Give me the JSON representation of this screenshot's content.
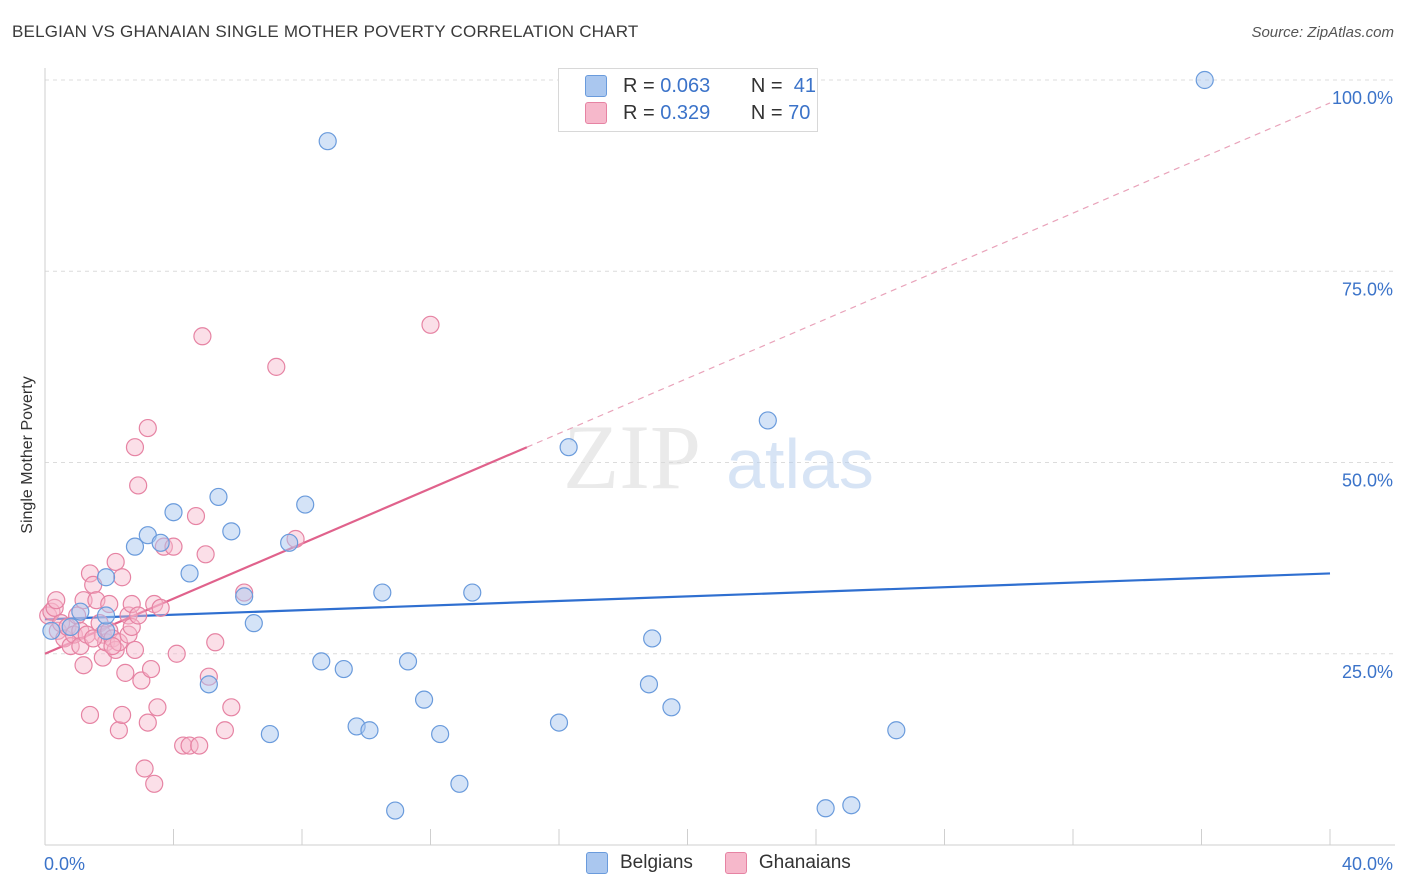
{
  "header": {
    "title": "BELGIAN VS GHANAIAN SINGLE MOTHER POVERTY CORRELATION CHART",
    "source": "Source: ZipAtlas.com"
  },
  "watermark": {
    "zip": "ZIP",
    "atlas": "atlas"
  },
  "legend": {
    "rows": [
      {
        "r_label": "R =",
        "r_value": "0.063",
        "n_label": "N =",
        "n_value": "41",
        "color": "#aac7ef"
      },
      {
        "r_label": "R =",
        "r_value": "0.329",
        "n_label": "N =",
        "n_value": "70",
        "color": "#f6b8cb"
      }
    ]
  },
  "bottom_legend": {
    "belgians": "Belgians",
    "ghanaians": "Ghanaians"
  },
  "colors": {
    "belgian_fill": "#aac7ef",
    "belgian_stroke": "#6a9bdc",
    "belgian_line": "#2f6fd0",
    "ghanaian_fill": "#f6b8cb",
    "ghanaian_stroke": "#e683a3",
    "ghanaian_line": "#e0628c",
    "tick_text": "#3b73c9"
  },
  "chart_data": {
    "type": "scatter",
    "title": "BELGIAN VS GHANAIAN SINGLE MOTHER POVERTY CORRELATION CHART",
    "xlabel": "",
    "ylabel": "Single Mother Poverty",
    "xlim": [
      0,
      40
    ],
    "ylim": [
      0,
      100
    ],
    "x_tick_labels": [
      "0.0%",
      "40.0%"
    ],
    "y_ticks": [
      25,
      50,
      75,
      100
    ],
    "y_tick_labels": [
      "25.0%",
      "50.0%",
      "75.0%",
      "100.0%"
    ],
    "grid": true,
    "series": [
      {
        "name": "Belgians",
        "trend": {
          "x": [
            0,
            40
          ],
          "y": [
            29.5,
            35.5
          ],
          "style": "solid"
        },
        "points": [
          [
            0.2,
            28
          ],
          [
            0.8,
            28.5
          ],
          [
            1.1,
            30.5
          ],
          [
            1.9,
            28
          ],
          [
            1.9,
            30
          ],
          [
            1.9,
            35
          ],
          [
            2.8,
            39
          ],
          [
            3.2,
            40.5
          ],
          [
            3.6,
            39.5
          ],
          [
            4.0,
            43.5
          ],
          [
            4.5,
            35.5
          ],
          [
            5.1,
            21
          ],
          [
            5.4,
            45.5
          ],
          [
            5.8,
            41
          ],
          [
            6.2,
            32.5
          ],
          [
            6.5,
            29
          ],
          [
            7.0,
            14.5
          ],
          [
            7.6,
            39.5
          ],
          [
            8.1,
            44.5
          ],
          [
            8.6,
            24
          ],
          [
            8.8,
            92
          ],
          [
            9.3,
            23
          ],
          [
            9.7,
            15.5
          ],
          [
            10.1,
            15
          ],
          [
            10.5,
            33
          ],
          [
            10.9,
            4.5
          ],
          [
            11.3,
            24
          ],
          [
            11.8,
            19
          ],
          [
            12.3,
            14.5
          ],
          [
            12.9,
            8
          ],
          [
            13.3,
            33
          ],
          [
            16.0,
            16
          ],
          [
            16.3,
            52
          ],
          [
            18.8,
            21
          ],
          [
            18.9,
            27
          ],
          [
            19.5,
            18
          ],
          [
            22.5,
            55.5
          ],
          [
            24.3,
            4.8
          ],
          [
            25.1,
            5.2
          ],
          [
            26.5,
            15
          ],
          [
            36.1,
            100
          ]
        ]
      },
      {
        "name": "Ghanaians",
        "trend": {
          "x": [
            0,
            15
          ],
          "y": [
            25,
            52
          ],
          "dashed_extension_to": [
            40,
            97
          ],
          "style": "solid"
        },
        "points": [
          [
            0.1,
            30
          ],
          [
            0.2,
            30.5
          ],
          [
            0.3,
            31
          ],
          [
            0.35,
            32
          ],
          [
            0.4,
            28
          ],
          [
            0.5,
            29
          ],
          [
            0.6,
            27
          ],
          [
            0.7,
            28.5
          ],
          [
            0.8,
            26
          ],
          [
            0.9,
            27.5
          ],
          [
            1.0,
            30
          ],
          [
            1.1,
            28
          ],
          [
            1.1,
            26
          ],
          [
            1.2,
            32
          ],
          [
            1.2,
            23.5
          ],
          [
            1.3,
            27.5
          ],
          [
            1.4,
            35.5
          ],
          [
            1.4,
            17
          ],
          [
            1.5,
            34
          ],
          [
            1.6,
            32
          ],
          [
            1.7,
            29
          ],
          [
            1.8,
            27.5
          ],
          [
            1.8,
            24.5
          ],
          [
            1.9,
            26.5
          ],
          [
            2.0,
            28
          ],
          [
            2.0,
            31.5
          ],
          [
            2.1,
            27
          ],
          [
            2.2,
            25.5
          ],
          [
            2.2,
            37
          ],
          [
            2.3,
            26.5
          ],
          [
            2.3,
            15
          ],
          [
            2.4,
            35
          ],
          [
            2.4,
            17
          ],
          [
            2.5,
            22.5
          ],
          [
            2.6,
            30
          ],
          [
            2.6,
            27.5
          ],
          [
            2.7,
            28.5
          ],
          [
            2.7,
            31.5
          ],
          [
            2.8,
            25.5
          ],
          [
            2.8,
            52
          ],
          [
            2.9,
            47
          ],
          [
            3.0,
            21.5
          ],
          [
            3.1,
            10
          ],
          [
            3.2,
            54.5
          ],
          [
            3.2,
            16
          ],
          [
            3.3,
            23
          ],
          [
            3.4,
            8
          ],
          [
            3.4,
            31.5
          ],
          [
            3.5,
            18
          ],
          [
            3.6,
            31
          ],
          [
            3.7,
            39
          ],
          [
            4.1,
            25
          ],
          [
            4.3,
            13
          ],
          [
            4.5,
            13
          ],
          [
            4.7,
            43
          ],
          [
            4.8,
            13
          ],
          [
            4.9,
            66.5
          ],
          [
            5.0,
            38
          ],
          [
            5.1,
            22
          ],
          [
            5.3,
            26.5
          ],
          [
            5.6,
            15
          ],
          [
            5.8,
            18
          ],
          [
            6.2,
            33
          ],
          [
            7.2,
            62.5
          ],
          [
            7.8,
            40
          ],
          [
            12.0,
            68
          ],
          [
            2.1,
            26
          ],
          [
            1.5,
            27
          ],
          [
            2.9,
            30
          ],
          [
            4.0,
            39
          ]
        ]
      }
    ]
  }
}
